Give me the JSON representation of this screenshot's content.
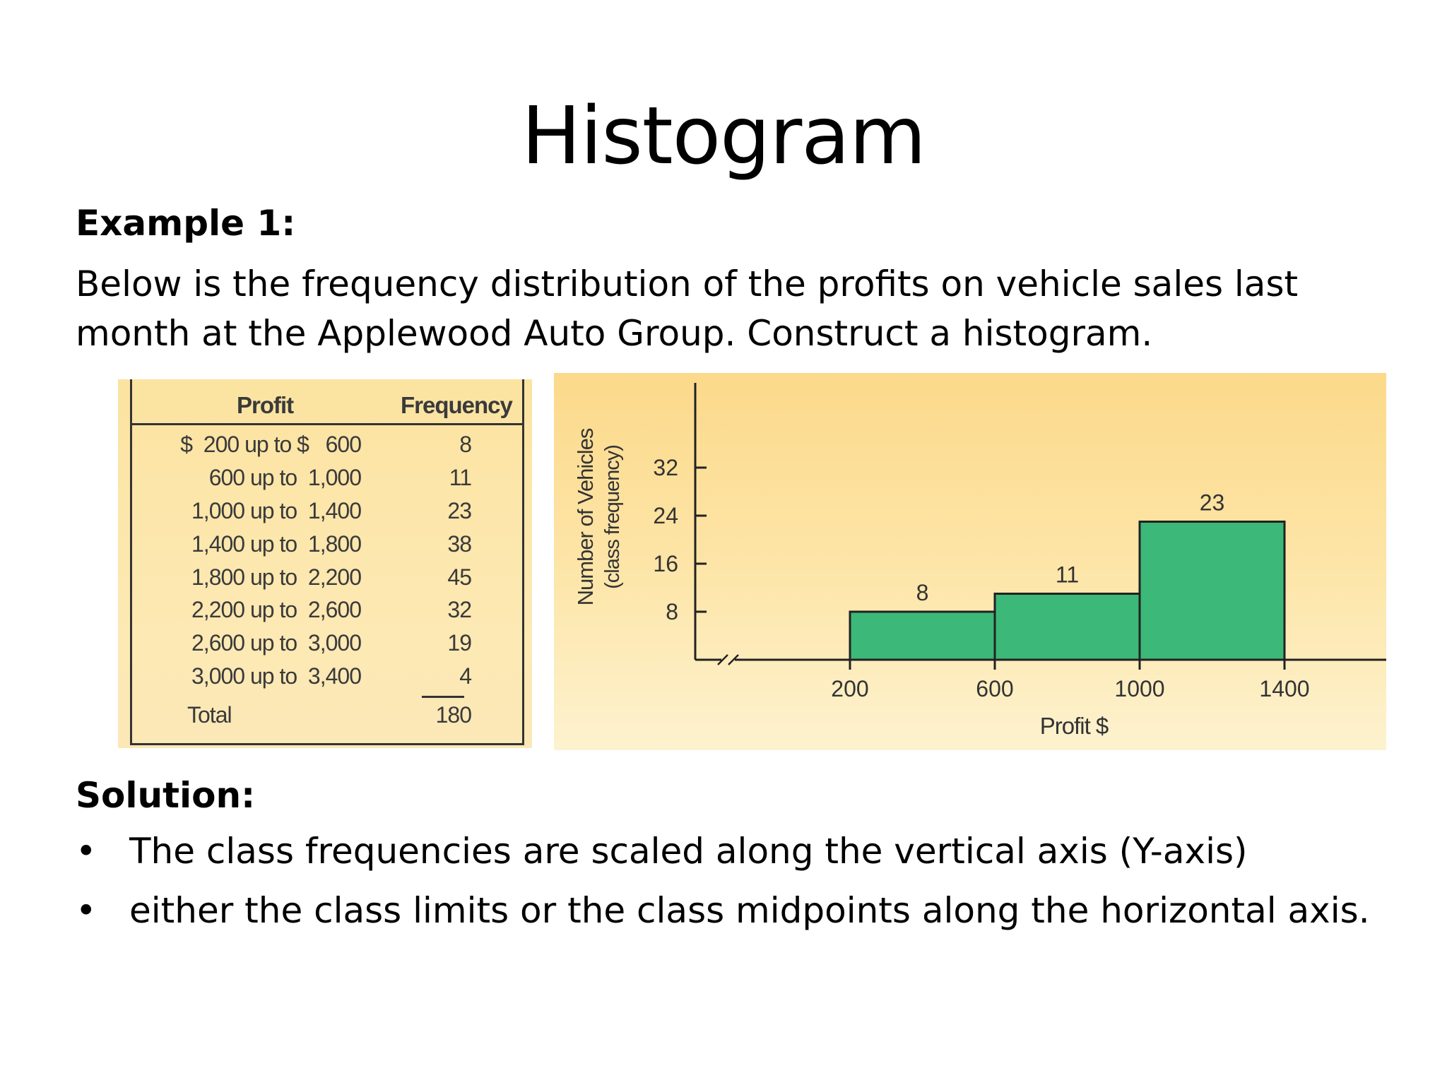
{
  "slide": {
    "title": "Histogram",
    "example_label": "Example 1:",
    "description": "Below is the frequency distribution of the profits on vehicle sales last month at the Applewood Auto Group. Construct a histogram.",
    "solution_label": "Solution:",
    "bullet_symbol": "•",
    "bullets": [
      "The class frequencies are scaled along the vertical axis (Y-axis)",
      "either the class limits or the class midpoints along the horizontal axis."
    ]
  },
  "freq_table": {
    "headers": [
      "Profit",
      "Frequency"
    ],
    "rows": [
      {
        "range": "$  200 up to $   600",
        "freq": "8"
      },
      {
        "range": "600 up to  1,000",
        "freq": "11"
      },
      {
        "range": "1,000 up to  1,400",
        "freq": "23"
      },
      {
        "range": "1,400 up to  1,800",
        "freq": "38"
      },
      {
        "range": "1,800 up to  2,200",
        "freq": "45"
      },
      {
        "range": "2,200 up to  2,600",
        "freq": "32"
      },
      {
        "range": "2,600 up to  3,000",
        "freq": "19"
      },
      {
        "range": "3,000 up to  3,400",
        "freq": "4"
      }
    ],
    "total_label": "Total",
    "total_value": "180"
  },
  "chart_data": {
    "type": "bar",
    "subtype": "histogram",
    "categories": [
      "200 up to 600",
      "600 up to 1000",
      "1000 up to 1400"
    ],
    "bins": [
      [
        200,
        600
      ],
      [
        600,
        1000
      ],
      [
        1000,
        1400
      ]
    ],
    "values": [
      8,
      11,
      23
    ],
    "data_labels": [
      "8",
      "11",
      "23"
    ],
    "x_ticks": [
      "200",
      "600",
      "1000",
      "1400"
    ],
    "y_ticks": [
      "8",
      "16",
      "24",
      "32"
    ],
    "xlabel": "Profit $",
    "ylabel": [
      "Number of Vehicles",
      "(class frequency)"
    ],
    "xlim": [
      0,
      1700
    ],
    "ylim": [
      0,
      34
    ],
    "axis_break": true,
    "grid": false,
    "colors": {
      "bar": "#3cb878",
      "bar_edge": "#222222",
      "axis": "#222222"
    }
  }
}
